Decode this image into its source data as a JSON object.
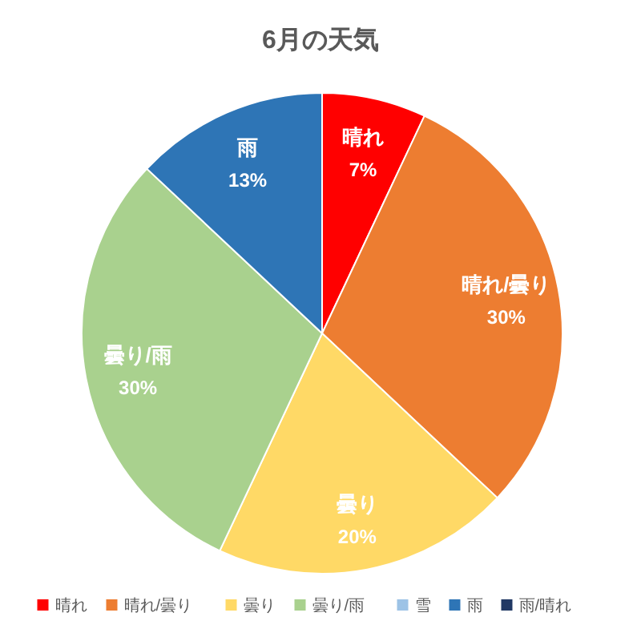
{
  "chart_data": {
    "type": "pie",
    "title": "6月の天気",
    "categories": [
      "晴れ",
      "晴れ/曇り",
      "曇り",
      "曇り/雨",
      "雪",
      "雨",
      "雨/晴れ"
    ],
    "values": [
      7,
      30,
      20,
      30,
      0,
      13,
      0
    ],
    "colors": [
      "#ff0000",
      "#ed7d31",
      "#ffd966",
      "#a9d18e",
      "#9dc3e6",
      "#2e75b6",
      "#203864"
    ],
    "value_labels": [
      "7%",
      "30%",
      "20%",
      "30%",
      null,
      "13%",
      null
    ],
    "legend": "bottom"
  }
}
